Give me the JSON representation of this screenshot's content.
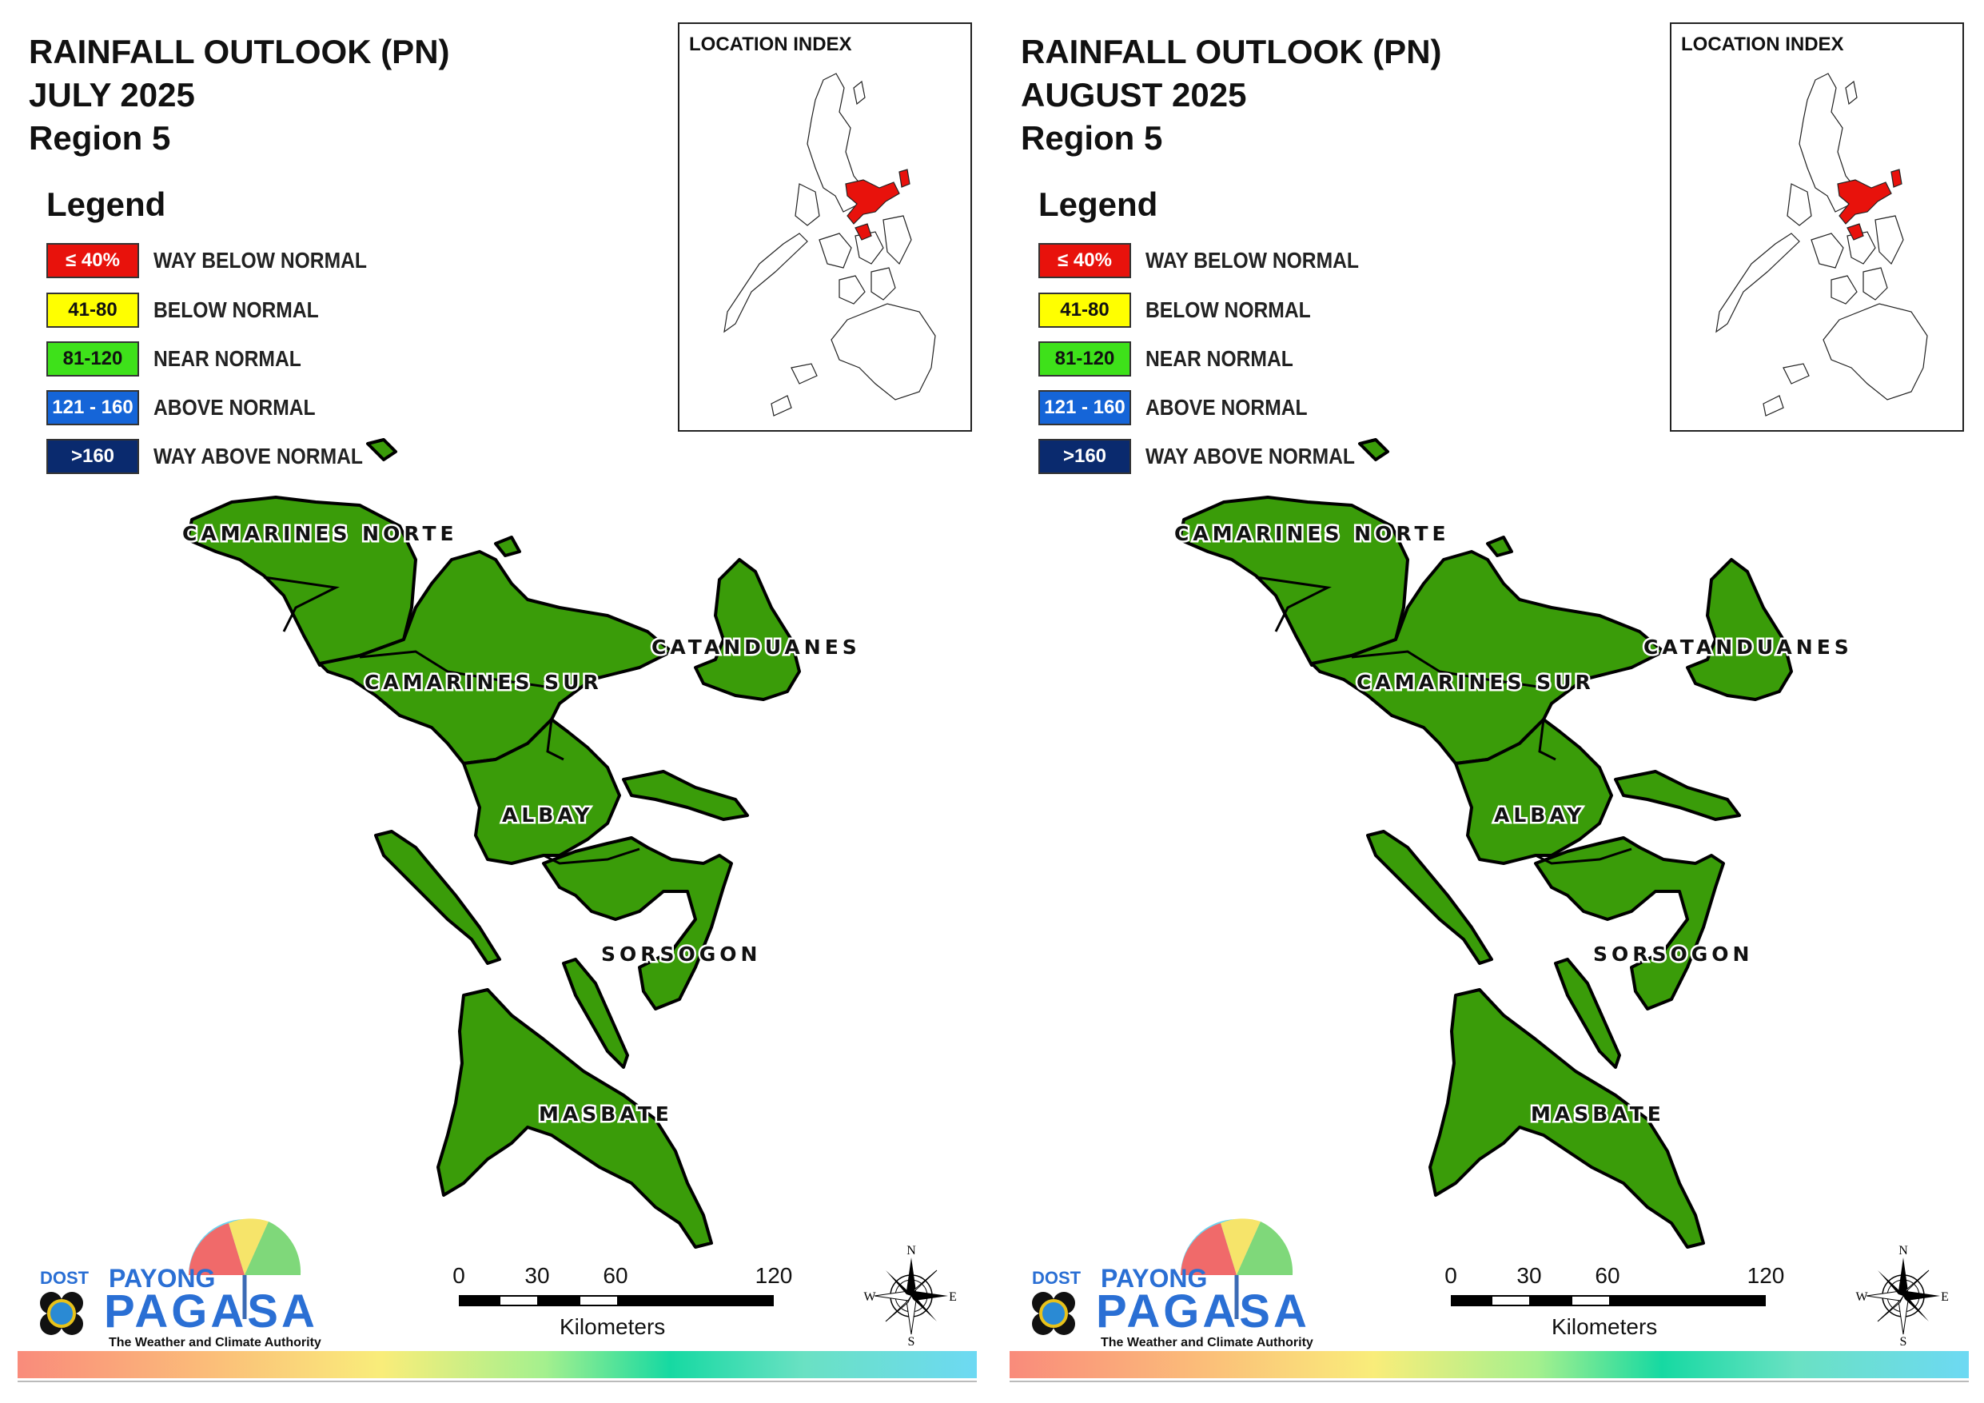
{
  "panels": [
    {
      "title_line1": "RAINFALL OUTLOOK (PN)",
      "title_line2": "JULY 2025",
      "title_line3": "Region 5"
    },
    {
      "title_line1": "RAINFALL OUTLOOK (PN)",
      "title_line2": "AUGUST 2025",
      "title_line3": "Region 5"
    }
  ],
  "legend": {
    "title": "Legend",
    "items": [
      {
        "range": "≤ 40%",
        "label": "WAY BELOW NORMAL",
        "color": "#e8120c",
        "text_color": "#ffffff"
      },
      {
        "range": "41-80",
        "label": "BELOW NORMAL",
        "color": "#ffff00",
        "text_color": "#111111"
      },
      {
        "range": "81-120",
        "label": "NEAR NORMAL",
        "color": "#3ee11a",
        "text_color": "#111111"
      },
      {
        "range": "121 - 160",
        "label": "ABOVE NORMAL",
        "color": "#1565d8",
        "text_color": "#ffffff"
      },
      {
        "range": ">160",
        "label": "WAY ABOVE NORMAL",
        "color": "#0a2a6e",
        "text_color": "#ffffff"
      }
    ]
  },
  "inset": {
    "title": "LOCATION INDEX",
    "highlight_color": "#e8120c"
  },
  "map": {
    "province_fill": "#3a9c09",
    "outline_color": "#000000",
    "provinces": [
      {
        "name": "CAMARINES NORTE",
        "category": "NEAR NORMAL"
      },
      {
        "name": "CAMARINES SUR",
        "category": "NEAR NORMAL"
      },
      {
        "name": "CATANDUANES",
        "category": "NEAR NORMAL"
      },
      {
        "name": "ALBAY",
        "category": "NEAR NORMAL"
      },
      {
        "name": "SORSOGON",
        "category": "NEAR NORMAL"
      },
      {
        "name": "MASBATE",
        "category": "NEAR NORMAL"
      }
    ]
  },
  "scale_bar": {
    "ticks": [
      "0",
      "30",
      "60",
      "120"
    ],
    "unit": "Kilometers"
  },
  "compass": {
    "n": "N",
    "e": "E",
    "s": "S",
    "w": "W"
  },
  "logo": {
    "agency_short": "DOST",
    "line1": "PAYONG",
    "line2": "PAGASA",
    "tagline": "The Weather and Climate Authority"
  }
}
